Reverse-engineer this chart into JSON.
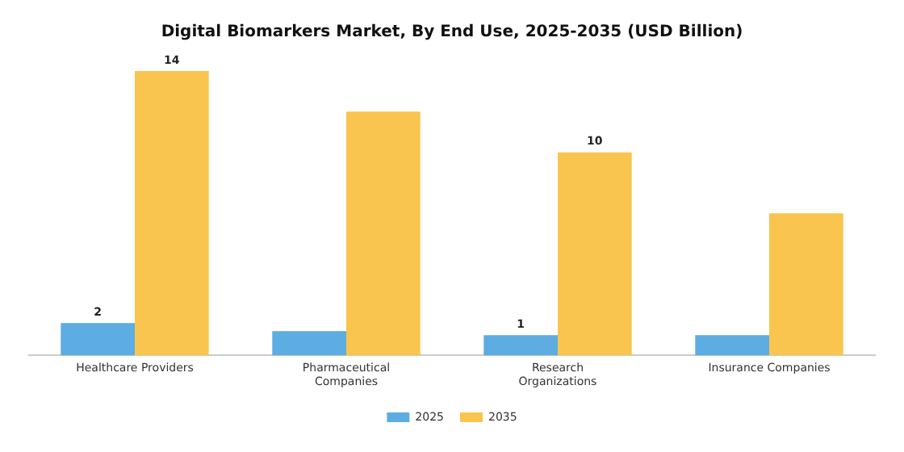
{
  "chart_data": {
    "type": "bar",
    "title": "Digital Biomarkers Market, By End Use, 2025-2035 (USD Billion)",
    "categories": [
      "Healthcare Providers",
      "Pharmaceutical Companies",
      "Research Organizations",
      "Insurance Companies"
    ],
    "series": [
      {
        "name": "2025",
        "color": "#5dade2",
        "values": [
          1.6,
          1.2,
          1.0,
          1.0
        ],
        "value_labels": [
          "2",
          null,
          "1",
          null
        ]
      },
      {
        "name": "2035",
        "color": "#f9c54e",
        "values": [
          14,
          12,
          10,
          7
        ],
        "value_labels": [
          "14",
          null,
          "10",
          null
        ]
      }
    ],
    "grid": false,
    "legend": "bottom"
  }
}
